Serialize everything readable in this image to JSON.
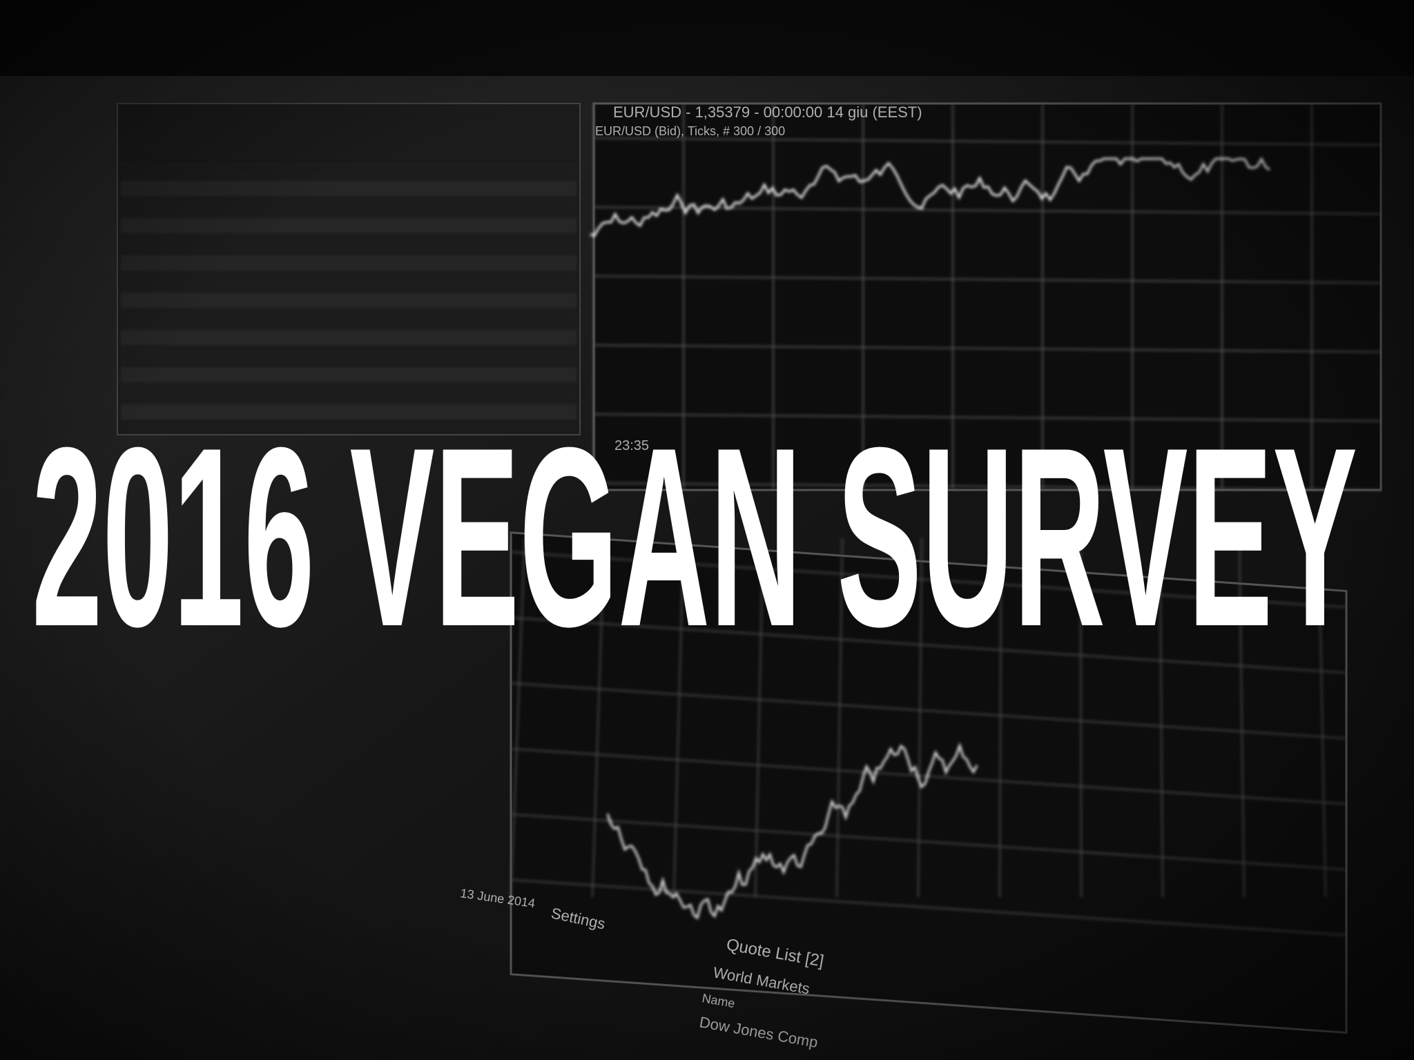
{
  "title": "2016 VEGAN SURVEY",
  "screen_texts": [
    {
      "text": "EUR/USD - 1,35379 - 00:00:00  14 giu (EEST)"
    },
    {
      "text": "EUR/USD (Bid), Ticks, # 300 / 300"
    },
    {
      "text": "23:35"
    },
    {
      "text": "13 June 2014"
    },
    {
      "text": "Settings"
    },
    {
      "text": "Quote List [2]"
    },
    {
      "text": "World Markets"
    },
    {
      "text": "Name"
    },
    {
      "text": "Dow Jones Comp"
    }
  ]
}
